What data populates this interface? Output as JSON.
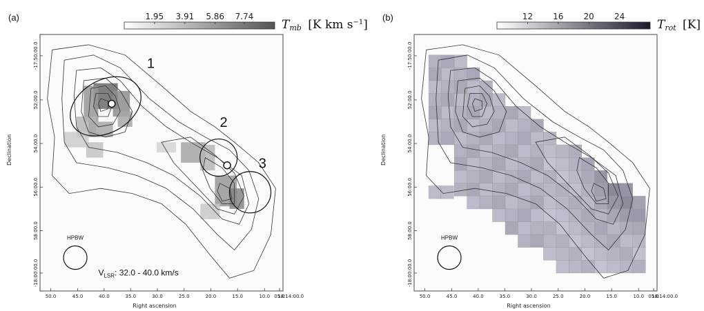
{
  "chart_data": [
    {
      "type": "heatmap",
      "panel_label": "(a)",
      "colorbar": {
        "title": "T",
        "title_sub": "mb",
        "title_unit": "[K km s",
        "title_unit_sup": "−1",
        "title_unit_end": "]",
        "ticks": [
          "1.95",
          "3.91",
          "5.86",
          "7.74"
        ],
        "range": [
          0,
          9.7
        ],
        "colors": [
          "#ffffff",
          "#555555"
        ]
      },
      "xlabel": "Right ascension",
      "ylabel": "Declination",
      "xticks": [
        "50.0",
        "45.0",
        "40.0",
        "35.0",
        "30.0",
        "25.0",
        "20.0",
        "15.0",
        "10.0",
        "05.0",
        "18:14:00.0"
      ],
      "yticks": [
        "-17:50:00.0",
        "52:00.0",
        "54:00.0",
        "56:00.0",
        "58:00.0",
        "-18:00:00.0"
      ],
      "sources": [
        {
          "label": "1"
        },
        {
          "label": "2"
        },
        {
          "label": "3"
        }
      ],
      "beam_label": "HPBW",
      "velocity_label": "V",
      "velocity_sub": "LSR",
      "velocity_range": ": 32.0 - 40.0 km/s"
    },
    {
      "type": "heatmap",
      "panel_label": "(b)",
      "colorbar": {
        "title": "T",
        "title_sub": "rot",
        "title_unit": "[K]",
        "ticks": [
          "12",
          "16",
          "20",
          "24"
        ],
        "range": [
          8,
          28
        ],
        "colors": [
          "#ffffff",
          "#1a1a2e"
        ]
      },
      "xlabel": "Right ascension",
      "ylabel": "Declination",
      "xticks": [
        "50.0",
        "45.0",
        "40.0",
        "35.0",
        "30.0",
        "25.0",
        "20.0",
        "15.0",
        "10.0",
        "05.0",
        "18:14:00.0"
      ],
      "yticks": [
        "-17:50:00.0",
        "52:00.0",
        "54:00.0",
        "56:00.0",
        "58:00.0",
        "-18:00:00.0"
      ],
      "beam_label": "HPBW"
    }
  ]
}
